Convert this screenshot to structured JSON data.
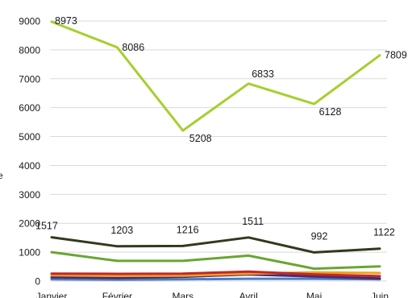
{
  "chart_data": {
    "type": "line",
    "title": "",
    "xlabel": "",
    "ylabel": "e",
    "categories": [
      "Janvier",
      "Février",
      "Mars",
      "Avril",
      "Mai",
      "Juin"
    ],
    "ylim": [
      0,
      9000
    ],
    "yticks": [
      "0",
      "1000",
      "2000",
      "3000",
      "4000",
      "5000",
      "6000",
      "7000",
      "8000",
      "9000"
    ],
    "grid": true,
    "legend": "none",
    "series": [
      {
        "values": [
          8973,
          8086,
          5208,
          6833,
          6128,
          7809
        ],
        "color": "#a6cf2f",
        "labels": [
          "8973",
          "8086",
          "5208",
          "6833",
          "6128",
          "7809"
        ]
      },
      {
        "values": [
          1517,
          1203,
          1216,
          1511,
          992,
          1122
        ],
        "color": "#2f3b1d",
        "labels": [
          "1517",
          "1203",
          "1216",
          "1511",
          "992",
          "1122"
        ]
      },
      {
        "values": [
          1000,
          700,
          700,
          880,
          430,
          510
        ],
        "color": "#6aa532"
      },
      {
        "values": [
          260,
          250,
          260,
          330,
          230,
          170
        ],
        "color": "#c0282d"
      },
      {
        "values": [
          200,
          180,
          190,
          260,
          300,
          280
        ],
        "color": "#f0a020"
      },
      {
        "values": [
          130,
          110,
          150,
          230,
          160,
          90
        ],
        "color": "#4a2b6b"
      },
      {
        "values": [
          60,
          50,
          60,
          80,
          80,
          60
        ],
        "color": "#4b7cc8"
      }
    ]
  }
}
